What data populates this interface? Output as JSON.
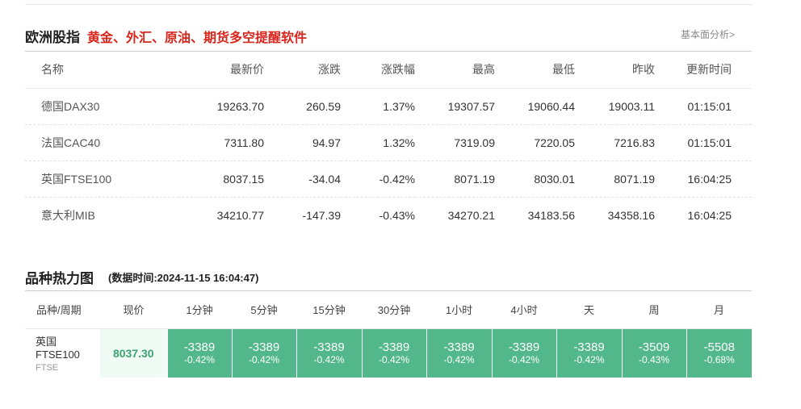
{
  "section1": {
    "title": "欧洲股指",
    "promo_link": "黄金、外汇、原油、期货多空提醒软件",
    "more_link": "基本面分析>",
    "headers": [
      "名称",
      "最新价",
      "涨跌",
      "涨跌幅",
      "最高",
      "最低",
      "昨收",
      "更新时间"
    ],
    "rows": [
      {
        "name": "德国DAX30",
        "price": "19263.70",
        "change": "260.59",
        "pct": "1.37%",
        "high": "19307.57",
        "low": "19060.44",
        "prev": "19003.11",
        "time": "01:15:01",
        "dir": "up"
      },
      {
        "name": "法国CAC40",
        "price": "7311.80",
        "change": "94.97",
        "pct": "1.32%",
        "high": "7319.09",
        "low": "7220.05",
        "prev": "7216.83",
        "time": "01:15:01",
        "dir": "up"
      },
      {
        "name": "英国FTSE100",
        "price": "8037.15",
        "change": "-34.04",
        "pct": "-0.42%",
        "high": "8071.19",
        "low": "8030.01",
        "prev": "8071.19",
        "time": "16:04:25",
        "dir": "down"
      },
      {
        "name": "意大利MIB",
        "price": "34210.77",
        "change": "-147.39",
        "pct": "-0.43%",
        "high": "34270.21",
        "low": "34183.56",
        "prev": "34358.16",
        "time": "16:04:25",
        "dir": "down"
      }
    ]
  },
  "section2": {
    "title": "品种热力图",
    "data_time": "(数据时间:2024-11-15 16:04:47)",
    "headers": [
      "品种/周期",
      "现价",
      "1分钟",
      "5分钟",
      "15分钟",
      "30分钟",
      "1小时",
      "4小时",
      "天",
      "周",
      "月"
    ],
    "row": {
      "name": "英国FTSE100",
      "code": "FTSE",
      "price": "8037.30",
      "cells": [
        {
          "value": "-3389",
          "pct": "-0.42%"
        },
        {
          "value": "-3389",
          "pct": "-0.42%"
        },
        {
          "value": "-3389",
          "pct": "-0.42%"
        },
        {
          "value": "-3389",
          "pct": "-0.42%"
        },
        {
          "value": "-3389",
          "pct": "-0.42%"
        },
        {
          "value": "-3389",
          "pct": "-0.42%"
        },
        {
          "value": "-3389",
          "pct": "-0.42%"
        },
        {
          "value": "-3509",
          "pct": "-0.43%"
        },
        {
          "value": "-5508",
          "pct": "-0.68%"
        }
      ]
    }
  },
  "colors": {
    "up": "#e0605a",
    "down": "#3ea374",
    "heat_green": "#52b78b",
    "promo_red": "#d9261c"
  }
}
